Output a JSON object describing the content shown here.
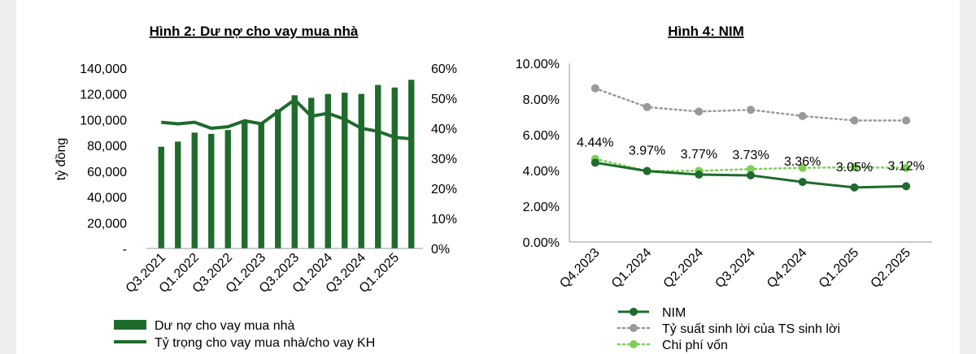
{
  "chart_data": [
    {
      "type": "bar",
      "title": "Hình 2: Dư nợ cho vay mua nhà",
      "ylabel": "tỷ đồng",
      "ylim": [
        0,
        140000
      ],
      "y_ticks": [
        "-",
        "20,000",
        "40,000",
        "60,000",
        "80,000",
        "100,000",
        "120,000",
        "140,000"
      ],
      "y2lim": [
        0,
        60
      ],
      "y2_ticks": [
        "0%",
        "10%",
        "20%",
        "30%",
        "40%",
        "50%",
        "60%"
      ],
      "categories": [
        "Q3.2021",
        "Q4.2021",
        "Q1.2022",
        "Q2.2022",
        "Q3.2022",
        "Q4.2022",
        "Q1.2023",
        "Q2.2023",
        "Q3.2023",
        "Q4.2023",
        "Q1.2024",
        "Q2.2024",
        "Q3.2024",
        "Q4.2024",
        "Q1.2025",
        "Q2.2025"
      ],
      "category_labels": [
        "Q3.2021",
        "",
        "Q1.2022",
        "",
        "Q3.2022",
        "",
        "Q1.2023",
        "",
        "Q3.2023",
        "",
        "Q1.2024",
        "",
        "Q3.2024",
        "",
        "Q1.2025",
        ""
      ],
      "series": [
        {
          "name": "Dư nợ cho vay mua nhà",
          "type": "bar",
          "axis": "left",
          "color": "#1e6b2c",
          "values": [
            79000,
            83000,
            90000,
            89000,
            92000,
            98000,
            97000,
            108000,
            119000,
            117000,
            120000,
            121000,
            120000,
            127000,
            125000,
            131000
          ]
        },
        {
          "name": "Tỷ trọng cho vay mua nhà/cho vay KH",
          "type": "line",
          "axis": "right",
          "color": "#1e6b2c",
          "values": [
            42,
            41.5,
            42,
            40,
            40.5,
            42.5,
            41.5,
            45.5,
            49.5,
            44,
            45,
            43,
            40,
            39,
            37,
            36.5
          ]
        }
      ],
      "legend_position": "bottom"
    },
    {
      "type": "line",
      "title": "Hình 4: NIM",
      "ylim": [
        0,
        10
      ],
      "y_ticks": [
        "0.00%",
        "2.00%",
        "4.00%",
        "6.00%",
        "8.00%",
        "10.00%"
      ],
      "categories": [
        "Q4.2023",
        "Q1.2024",
        "Q2.2024",
        "Q3.2024",
        "Q4.2024",
        "Q1.2025",
        "Q2.2025"
      ],
      "series": [
        {
          "name": "NIM",
          "color": "#1e6b2c",
          "style": "solid",
          "values": [
            4.44,
            3.97,
            3.77,
            3.73,
            3.36,
            3.05,
            3.12
          ],
          "data_labels": [
            "4.44%",
            "3.97%",
            "3.77%",
            "3.73%",
            "3.36%",
            "3.05%",
            "3.12%"
          ]
        },
        {
          "name": "Tỷ suất sinh lời của TS sinh lời",
          "color": "#999999",
          "style": "dotted",
          "values": [
            8.6,
            7.55,
            7.3,
            7.4,
            7.05,
            6.8,
            6.8
          ]
        },
        {
          "name": "Chi phí vốn",
          "color": "#7dcf55",
          "style": "dotted",
          "values": [
            4.65,
            3.98,
            3.98,
            4.08,
            4.15,
            4.18,
            4.15
          ]
        }
      ],
      "legend_position": "bottom"
    }
  ]
}
